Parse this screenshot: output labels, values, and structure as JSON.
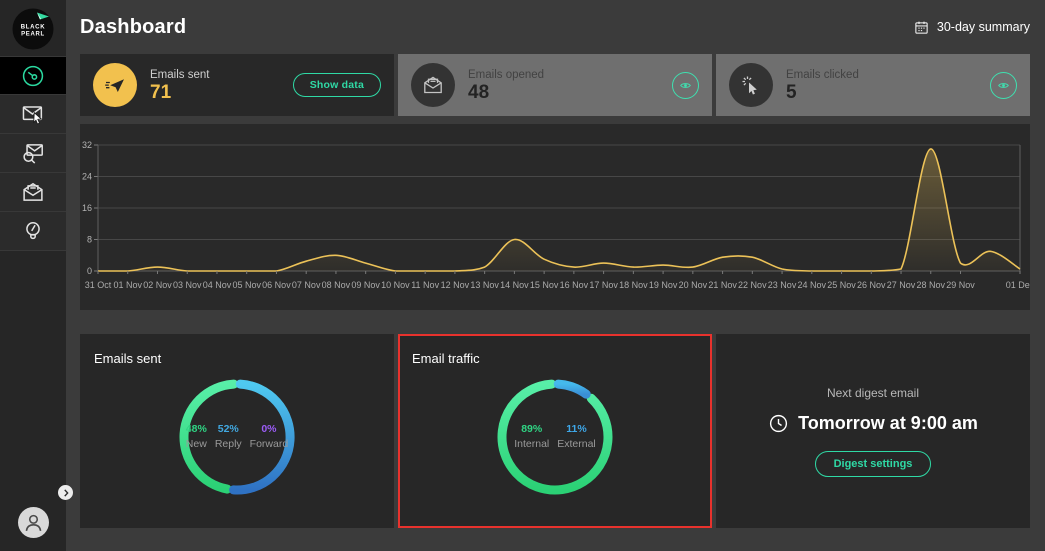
{
  "header": {
    "title": "Dashboard",
    "summary_label": "30-day summary"
  },
  "sidebar": {
    "logo_line1": "BLACK",
    "logo_line2": "PEARL",
    "items": [
      {
        "icon": "dashboard-gauge-icon",
        "active": true
      },
      {
        "icon": "email-cursor-icon",
        "active": false
      },
      {
        "icon": "email-search-icon",
        "active": false
      },
      {
        "icon": "email-opened-icon",
        "active": false
      },
      {
        "icon": "idea-bulb-icon",
        "active": false
      }
    ]
  },
  "stat_cards": [
    {
      "icon": "send-plane-icon",
      "label": "Emails sent",
      "value": "71",
      "action": "Show data",
      "state": "active"
    },
    {
      "icon": "email-opened-icon",
      "label": "Emails opened",
      "value": "48",
      "action_icon": "eye-icon",
      "state": "disabled"
    },
    {
      "icon": "click-cursor-icon",
      "label": "Emails clicked",
      "value": "5",
      "action_icon": "eye-icon",
      "state": "disabled"
    }
  ],
  "chart_data": {
    "type": "line",
    "x_tick_labels": [
      "31 Oct",
      "01 Nov",
      "02 Nov",
      "03 Nov",
      "04 Nov",
      "05 Nov",
      "06 Nov",
      "07 Nov",
      "08 Nov",
      "09 Nov",
      "10 Nov",
      "11 Nov",
      "12 Nov",
      "13 Nov",
      "14 Nov",
      "15 Nov",
      "16 Nov",
      "17 Nov",
      "18 Nov",
      "19 Nov",
      "20 Nov",
      "21 Nov",
      "22 Nov",
      "23 Nov",
      "24 Nov",
      "25 Nov",
      "26 Nov",
      "27 Nov",
      "28 Nov",
      "29 Nov",
      "01 Dec"
    ],
    "x_tick_indices": [
      0,
      1,
      2,
      3,
      4,
      5,
      6,
      7,
      8,
      9,
      10,
      11,
      12,
      13,
      14,
      15,
      16,
      17,
      18,
      19,
      20,
      21,
      22,
      23,
      24,
      25,
      26,
      27,
      28,
      29,
      31
    ],
    "values": [
      0,
      0,
      1,
      0,
      0,
      0,
      0,
      2.5,
      4,
      2,
      0,
      0,
      0,
      1,
      8,
      3,
      1,
      2,
      1,
      1.5,
      1,
      3.5,
      3.5,
      0.5,
      0,
      0,
      0,
      0.5,
      31,
      2,
      5,
      0.5
    ],
    "y_ticks": [
      0,
      8,
      16,
      24,
      32
    ],
    "ylim": [
      0,
      32
    ],
    "grid": true,
    "line_color": "#ecc258",
    "fill_color": "#ecc258"
  },
  "breakdown_cards": [
    {
      "title": "Emails sent",
      "highlighted": false,
      "chart_type": "donut",
      "segments": [
        {
          "label": "New",
          "pct": 48,
          "color": "#2fd584",
          "gradient": [
            "#58efa8",
            "#2bd175"
          ]
        },
        {
          "label": "Reply",
          "pct": 52,
          "color": "#41a8e0",
          "gradient": [
            "#4fc9f0",
            "#2f72c4"
          ]
        },
        {
          "label": "Forward",
          "pct": 0,
          "color": "#9b5cf6",
          "gradient": [
            "#9b5cf6",
            "#9b5cf6"
          ]
        }
      ]
    },
    {
      "title": "Email traffic",
      "highlighted": true,
      "chart_type": "donut",
      "segments": [
        {
          "label": "Internal",
          "pct": 89,
          "color": "#2fd584",
          "gradient": [
            "#58efa8",
            "#2bd175"
          ]
        },
        {
          "label": "External",
          "pct": 11,
          "color": "#3ea7e8",
          "gradient": [
            "#45b9ec",
            "#3a8fd6"
          ]
        }
      ]
    }
  ],
  "digest_card": {
    "label": "Next digest email",
    "time": "Tomorrow at 9:00 am",
    "button": "Digest settings"
  },
  "colors": {
    "accent_teal": "#2fd9a5",
    "accent_yellow": "#f2c14e",
    "highlight_red": "#e8322d",
    "page_bg": "#3b3b3b",
    "card_bg": "#282828",
    "disabled_card_bg": "#6f6f6f"
  }
}
